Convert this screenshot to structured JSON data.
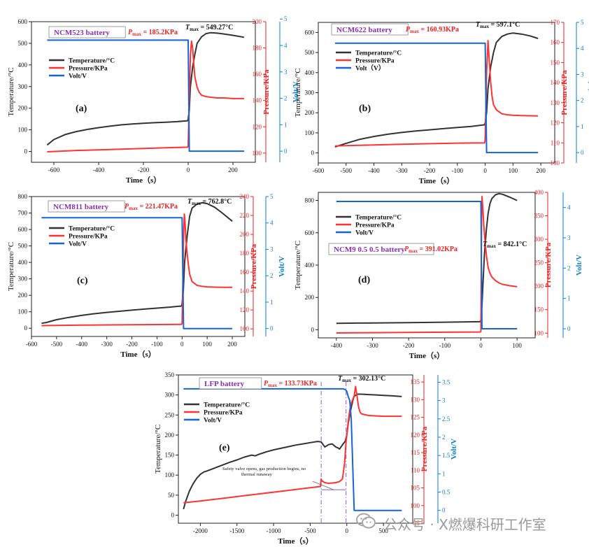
{
  "colors": {
    "temperature": "#333333",
    "pressure": "#ff3333",
    "volt": "#1565d8",
    "label_purple": "#8b2fb8",
    "axis_red": "#ee2222",
    "axis_blue": "#0a7fd6",
    "annotation_line": "#8a5cc7"
  },
  "watermark": {
    "text": "公众号 · X燃爆科研工作室",
    "icon": "wechat-icon"
  },
  "chart_data": [
    {
      "id": "a",
      "type": "line",
      "panel_label": "(a)",
      "title_box": "NCM523 battery",
      "pmax_label": "185.2KPa",
      "tmax_label": "549.27°C",
      "xlabel": "Time（s）",
      "ylabel_left": "Temperature/°C",
      "ylabel_right1": "Pressure/KPa",
      "ylabel_right2": "Volt/V",
      "xlim": [
        -700,
        300
      ],
      "xticks": [
        -600,
        -400,
        -200,
        0,
        200
      ],
      "y1lim": [
        -50,
        600
      ],
      "y1ticks": [
        0,
        100,
        200,
        300,
        400,
        500,
        600
      ],
      "y2lim": [
        93,
        200
      ],
      "y2ticks": [
        100,
        120,
        140,
        160,
        180,
        200
      ],
      "y3lim": [
        -0.42,
        4.9
      ],
      "y3ticks": [
        0,
        1,
        2,
        3,
        4,
        5
      ],
      "legend": [
        "Temperature/°C",
        "Pressure/KPa",
        "Volt/V"
      ],
      "series": [
        {
          "name": "Temperature/°C",
          "axis": "left",
          "x": [
            -630,
            -600,
            -550,
            -500,
            -450,
            -400,
            -350,
            -300,
            -250,
            -200,
            -150,
            -100,
            -50,
            -2,
            0,
            5,
            10,
            20,
            30,
            40,
            60,
            80,
            100,
            130,
            160,
            200,
            250
          ],
          "y": [
            30,
            55,
            78,
            92,
            102,
            110,
            117,
            123,
            127,
            130,
            133,
            135,
            138,
            142,
            150,
            190,
            300,
            390,
            450,
            500,
            530,
            545,
            549,
            547,
            543,
            537,
            528
          ]
        },
        {
          "name": "Pressure/KPa",
          "axis": "right1",
          "x": [
            -630,
            -500,
            -400,
            -300,
            -200,
            -100,
            -2,
            0,
            5,
            10,
            15,
            20,
            25,
            30,
            40,
            50,
            60,
            80,
            100,
            130,
            160,
            200,
            250
          ],
          "y": [
            101,
            102,
            102.5,
            103,
            103.5,
            104,
            104.5,
            106,
            140,
            175,
            185.2,
            180,
            168,
            158,
            150,
            146,
            144,
            143,
            142.5,
            142,
            142,
            141.5,
            141.5
          ]
        },
        {
          "name": "Volt/V",
          "axis": "right2",
          "x": [
            -630,
            -2,
            0,
            5,
            250
          ],
          "y": [
            4.2,
            4.2,
            4.2,
            0,
            0
          ]
        }
      ]
    },
    {
      "id": "b",
      "type": "line",
      "panel_label": "(b)",
      "title_box": "NCM622 battery",
      "pmax_label": "160.93KPa",
      "tmax_label": "597.1°C",
      "xlabel": "Time（s）",
      "ylabel_left": "Temperature/°C",
      "ylabel_right1": "Pressure/KPa",
      "ylabel_right2": "Volt（V）",
      "xlim": [
        -600,
        250
      ],
      "xticks": [
        -600,
        -500,
        -400,
        -300,
        -200,
        -100,
        0,
        100,
        200
      ],
      "y1lim": [
        -50,
        650
      ],
      "y1ticks": [
        0,
        100,
        200,
        300,
        400,
        500,
        600
      ],
      "y2lim": [
        100,
        170
      ],
      "y2ticks": [
        100,
        110,
        120,
        130,
        140,
        150,
        160,
        170
      ],
      "y3lim": [
        -0.4,
        5.0
      ],
      "y3ticks": [
        0,
        1,
        2,
        3,
        4,
        5
      ],
      "legend": [
        "Temperature/°C",
        "Pressure/KPa",
        "Volt（V）"
      ],
      "series": [
        {
          "name": "Temperature/°C",
          "axis": "left",
          "x": [
            -540,
            -500,
            -450,
            -400,
            -350,
            -300,
            -250,
            -200,
            -150,
            -100,
            -50,
            -2,
            0,
            5,
            10,
            20,
            30,
            40,
            60,
            80,
            100,
            130,
            160,
            190
          ],
          "y": [
            30,
            48,
            68,
            82,
            93,
            102,
            109,
            115,
            121,
            127,
            132,
            140,
            150,
            200,
            320,
            430,
            500,
            550,
            580,
            592,
            597,
            592,
            583,
            570
          ]
        },
        {
          "name": "Pressure/KPa",
          "axis": "right1",
          "x": [
            -540,
            -400,
            -300,
            -200,
            -100,
            -2,
            0,
            5,
            10,
            15,
            20,
            25,
            30,
            40,
            60,
            80,
            100,
            130,
            160,
            190
          ],
          "y": [
            108.5,
            109,
            109.3,
            109.6,
            109.9,
            110,
            112,
            145,
            160.93,
            150,
            140,
            133,
            129,
            126.5,
            124.5,
            124,
            123.8,
            123.6,
            123.5,
            123.4
          ]
        },
        {
          "name": "Volt（V）",
          "axis": "right2",
          "x": [
            -540,
            -2,
            0,
            5,
            190
          ],
          "y": [
            4.2,
            4.2,
            4.2,
            0,
            0
          ]
        }
      ]
    },
    {
      "id": "c",
      "type": "line",
      "panel_label": "(c)",
      "title_box": "NCM811 battery",
      "pmax_label": "221.47KPa",
      "tmax_label": "762.8°C",
      "xlabel": "Time（s）",
      "ylabel_left": "Temperature/°C",
      "ylabel_right1": "Pressure/KPa",
      "ylabel_right2": "Volt/V",
      "xlim": [
        -600,
        250
      ],
      "xticks": [
        -600,
        -500,
        -400,
        -300,
        -200,
        -100,
        0,
        100,
        200
      ],
      "y1lim": [
        -50,
        800
      ],
      "y1ticks": [
        0,
        100,
        200,
        300,
        400,
        500,
        600,
        700,
        800
      ],
      "y2lim": [
        92,
        240
      ],
      "y2ticks": [
        100,
        120,
        140,
        160,
        180,
        200,
        220,
        240
      ],
      "y3lim": [
        -0.3,
        5.0
      ],
      "y3ticks": [
        0,
        1,
        2,
        3,
        4,
        5
      ],
      "legend": [
        "Temperature/°C",
        "Pressure/KPa",
        "Volt/V"
      ],
      "series": [
        {
          "name": "Temperature/°C",
          "axis": "left",
          "x": [
            -560,
            -540,
            -500,
            -450,
            -400,
            -350,
            -300,
            -250,
            -200,
            -150,
            -100,
            -50,
            -2,
            0,
            5,
            10,
            20,
            30,
            40,
            60,
            80,
            100,
            130,
            160,
            200
          ],
          "y": [
            30,
            35,
            52,
            66,
            78,
            88,
            96,
            103,
            110,
            116,
            122,
            128,
            135,
            150,
            230,
            400,
            560,
            680,
            730,
            755,
            762,
            757,
            735,
            700,
            650
          ]
        },
        {
          "name": "Pressure/KPa",
          "axis": "right1",
          "x": [
            -560,
            -400,
            -300,
            -200,
            -100,
            -2,
            0,
            3,
            6,
            9,
            12,
            15,
            20,
            25,
            30,
            40,
            60,
            80,
            100,
            130,
            160,
            200
          ],
          "y": [
            103.5,
            104,
            104.2,
            104.4,
            104.6,
            104.8,
            106,
            150,
            200,
            221.47,
            212,
            195,
            180,
            168,
            158,
            150,
            146,
            145,
            144.5,
            144.2,
            144,
            144
          ]
        },
        {
          "name": "Volt/V",
          "axis": "right2",
          "x": [
            -560,
            -2,
            0,
            6,
            200
          ],
          "y": [
            4.2,
            4.2,
            4.2,
            0,
            0
          ]
        }
      ]
    },
    {
      "id": "d",
      "type": "line",
      "panel_label": "(d)",
      "title_box": "NCM9 0.5 0.5 battery",
      "pmax_label": "391.02KPa",
      "tmax_label": "842.1°C",
      "xlabel": "Time（s）",
      "ylabel_left": "Temperature/°C",
      "ylabel_right1": "Pressure/KPa",
      "ylabel_right2": "Volt/V",
      "xlim": [
        -450,
        150
      ],
      "xticks": [
        -400,
        -300,
        -200,
        -100,
        0,
        100
      ],
      "y1lim": [
        -50,
        850
      ],
      "y1ticks": [
        0,
        200,
        400,
        600,
        800
      ],
      "y2lim": [
        90,
        400
      ],
      "y2ticks": [
        100,
        150,
        200,
        250,
        300,
        350,
        400
      ],
      "y3lim": [
        -0.3,
        4.5
      ],
      "y3ticks": [
        0,
        1,
        2,
        3,
        4
      ],
      "legend": [
        "Temperature/°C",
        "Pressure/KPa",
        "Volt/V"
      ],
      "series": [
        {
          "name": "Temperature/°C",
          "axis": "left",
          "x": [
            -400,
            -300,
            -200,
            -100,
            -2,
            0,
            3,
            6,
            10,
            15,
            20,
            25,
            30,
            40,
            50,
            60,
            80,
            100
          ],
          "y": [
            40,
            42,
            44,
            47,
            50,
            60,
            150,
            300,
            480,
            620,
            720,
            780,
            810,
            835,
            842,
            838,
            820,
            800
          ]
        },
        {
          "name": "Pressure/KPa",
          "axis": "right1",
          "x": [
            -400,
            -300,
            -200,
            -100,
            -2,
            0,
            1,
            2,
            3,
            5,
            8,
            12,
            16,
            20,
            25,
            30,
            40,
            50,
            60,
            80,
            100
          ],
          "y": [
            100.5,
            101,
            101.5,
            102,
            102.5,
            104,
            250,
            350,
            391.02,
            370,
            330,
            290,
            260,
            240,
            228,
            220,
            212,
            207,
            204,
            201,
            199
          ]
        },
        {
          "name": "Volt/V",
          "axis": "right2",
          "x": [
            -400,
            -2,
            0,
            3,
            100
          ],
          "y": [
            4.2,
            4.2,
            4.2,
            0,
            0
          ]
        }
      ]
    },
    {
      "id": "e",
      "type": "line",
      "panel_label": "(e)",
      "title_box": "LFP battery",
      "pmax_label": "133.73KPa",
      "tmax_label": "302.13°C",
      "xlabel": "Time（s）",
      "ylabel_left": "Temperature/°C",
      "ylabel_right1": "Pressure/KPa",
      "ylabel_right2": "Volt/V",
      "annotation": "Safety valve opens, gas production begins, no thermal runaway",
      "xlim": [
        -2300,
        900
      ],
      "xticks": [
        -2000,
        -1500,
        -1000,
        -500,
        0,
        500
      ],
      "y1lim": [
        -20,
        350
      ],
      "y1ticks": [
        0,
        50,
        100,
        150,
        200,
        250,
        300,
        350
      ],
      "y2lim": [
        95,
        137
      ],
      "y2ticks": [
        95,
        100,
        105,
        110,
        115,
        120,
        125,
        130,
        135
      ],
      "y3lim": [
        -0.35,
        3.7
      ],
      "y3ticks": [
        0.0,
        0.5,
        1.0,
        1.5,
        2.0,
        2.5,
        3.0,
        3.5
      ],
      "annotation_lines_x": [
        -350,
        -10
      ],
      "legend": [
        "Temperature/°C",
        "Pressure/KPa",
        "Volt/V"
      ],
      "series": [
        {
          "name": "Temperature/°C",
          "axis": "left",
          "x": [
            -2230,
            -2200,
            -2150,
            -2100,
            -2050,
            -2000,
            -1950,
            -1900,
            -1800,
            -1700,
            -1600,
            -1500,
            -1400,
            -1300,
            -1250,
            -1200,
            -1100,
            -1000,
            -900,
            -800,
            -700,
            -600,
            -500,
            -400,
            -350,
            -300,
            -250,
            -200,
            -150,
            -120,
            -100,
            -80,
            -50,
            -20,
            0,
            20,
            50,
            80,
            100,
            150,
            200,
            300,
            400,
            500,
            600,
            750
          ],
          "y": [
            15,
            35,
            60,
            78,
            92,
            102,
            108,
            111,
            118,
            125,
            132,
            138,
            145,
            150,
            148,
            152,
            158,
            163,
            167,
            171,
            175,
            178,
            181,
            184,
            183,
            170,
            176,
            178,
            170,
            168,
            165,
            170,
            178,
            185,
            200,
            230,
            260,
            285,
            297,
            302,
            302,
            301,
            300,
            299,
            298,
            296
          ]
        },
        {
          "name": "Pressure/KPa",
          "axis": "right1",
          "x": [
            -2230,
            -2000,
            -1800,
            -1600,
            -1400,
            -1200,
            -1000,
            -800,
            -600,
            -400,
            -360,
            -350,
            -340,
            -300,
            -250,
            -200,
            -150,
            -100,
            -60,
            -30,
            -10,
            0,
            20,
            40,
            60,
            80,
            100,
            120,
            140,
            160,
            180,
            200,
            250,
            300,
            400,
            500,
            600,
            750
          ],
          "y": [
            100.8,
            101.3,
            101.8,
            102.3,
            102.8,
            103.3,
            103.8,
            104.3,
            104.8,
            105.3,
            105.4,
            107.5,
            107,
            106.5,
            106.3,
            106.4,
            106.5,
            106.8,
            107.5,
            112,
            118,
            120,
            124,
            127,
            129,
            130,
            131,
            133.73,
            131,
            128,
            126.5,
            126,
            125.7,
            125.5,
            125.4,
            125.3,
            125.3,
            125.3
          ]
        },
        {
          "name": "Volt/V",
          "axis": "right2",
          "x": [
            -2230,
            -50,
            -20,
            0,
            20,
            40,
            60,
            100,
            750
          ],
          "y": [
            3.32,
            3.32,
            3.3,
            3.25,
            3.1,
            3.0,
            2.5,
            0,
            0
          ]
        }
      ]
    }
  ]
}
